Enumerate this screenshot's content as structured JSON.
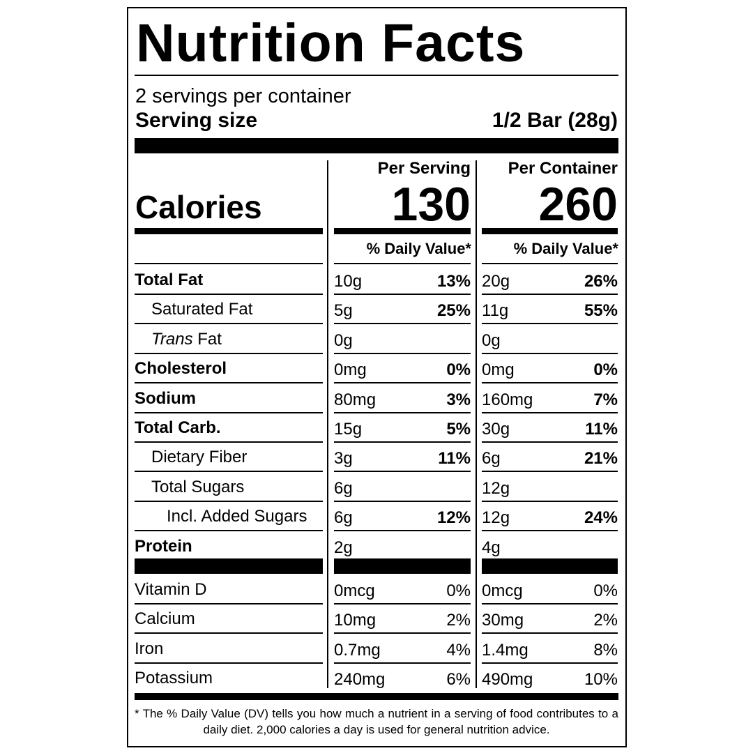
{
  "title": "Nutrition Facts",
  "servings": "2 servings per container",
  "serving_size_label": "Serving size",
  "serving_size": "1/2 Bar (28g)",
  "calories_label": "Calories",
  "columns": [
    {
      "header": "Per Serving",
      "calories": "130",
      "dv_header": "% Daily Value*"
    },
    {
      "header": "Per Container",
      "calories": "260",
      "dv_header": "% Daily Value*"
    }
  ],
  "nutrients": [
    {
      "name": "Total Fat",
      "serving": [
        "10g",
        "13%"
      ],
      "container": [
        "20g",
        "26%"
      ]
    },
    {
      "name": "Saturated Fat",
      "serving": [
        "5g",
        "25%"
      ],
      "container": [
        "11g",
        "55%"
      ]
    },
    {
      "name": [
        "Trans",
        "Fat"
      ],
      "serving": [
        "0g"
      ],
      "container": [
        "0g"
      ]
    },
    {
      "name": "Cholesterol",
      "serving": [
        "0mg",
        "0%"
      ],
      "container": [
        "0mg",
        "0%"
      ]
    },
    {
      "name": "Sodium",
      "serving": [
        "80mg",
        "3%"
      ],
      "container": [
        "160mg",
        "7%"
      ]
    },
    {
      "name": "Total Carb.",
      "serving": [
        "15g",
        "5%"
      ],
      "container": [
        "30g",
        "11%"
      ]
    },
    {
      "name": "Dietary Fiber",
      "serving": [
        "3g",
        "11%"
      ],
      "container": [
        "6g",
        "21%"
      ]
    },
    {
      "name": "Total Sugars",
      "serving": [
        "6g"
      ],
      "container": [
        "12g"
      ]
    },
    {
      "name": "Incl. Added Sugars",
      "serving": [
        "6g",
        "12%"
      ],
      "container": [
        "12g",
        "24%"
      ]
    },
    {
      "name": "Protein",
      "serving": [
        "2g"
      ],
      "container": [
        "4g"
      ]
    }
  ],
  "vitamins": [
    {
      "name": "Vitamin D",
      "serving": [
        "0mcg",
        "0%"
      ],
      "container": [
        "0mcg",
        "0%"
      ]
    },
    {
      "name": "Calcium",
      "serving": [
        "10mg",
        "2%"
      ],
      "container": [
        "30mg",
        "2%"
      ]
    },
    {
      "name": "Iron",
      "serving": [
        "0.7mg",
        "4%"
      ],
      "container": [
        "1.4mg",
        "8%"
      ]
    },
    {
      "name": "Potassium",
      "serving": [
        "240mg",
        "6%"
      ],
      "container": [
        "490mg",
        "10%"
      ]
    }
  ],
  "footnote": "* The % Daily Value (DV) tells you how much a nutrient in a serving of food contributes to a daily diet. 2,000 calories a day is used for general nutrition advice."
}
